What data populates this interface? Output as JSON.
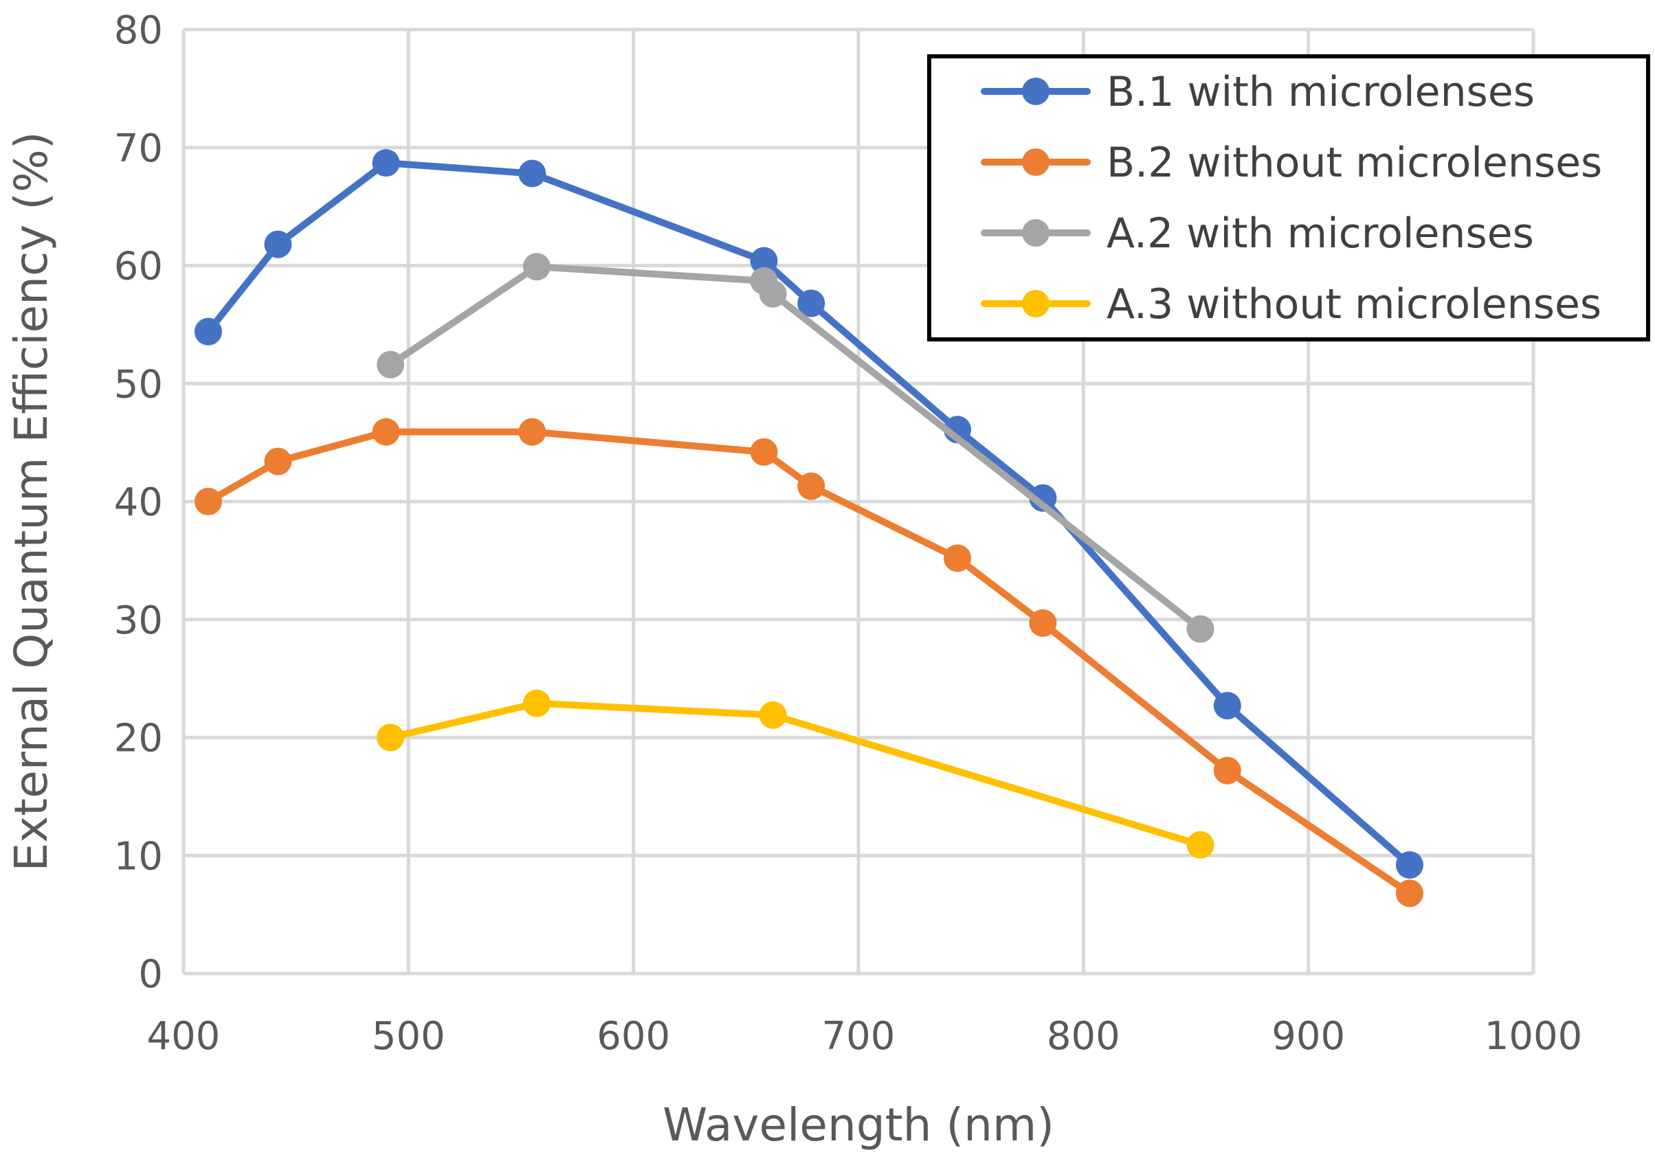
{
  "chart_data": {
    "type": "line",
    "title": "",
    "xlabel": "Wavelength (nm)",
    "ylabel": "External Quantum Efficiency (%)",
    "xlim": [
      400,
      1000
    ],
    "ylim": [
      0,
      80
    ],
    "xticks": [
      400,
      500,
      600,
      700,
      800,
      900,
      1000
    ],
    "yticks": [
      0,
      10,
      20,
      30,
      40,
      50,
      60,
      70,
      80
    ],
    "grid": true,
    "legend_position": "top-right",
    "series": [
      {
        "name": "B.1 with microlenses",
        "color": "#4472C4",
        "x": [
          411,
          442,
          490,
          555,
          658,
          679,
          744,
          782,
          864,
          945
        ],
        "y": [
          54.4,
          61.8,
          68.7,
          67.8,
          60.4,
          56.8,
          46.1,
          40.3,
          22.7,
          9.2
        ]
      },
      {
        "name": "B.2 without microlenses",
        "color": "#ED7D31",
        "x": [
          411,
          442,
          490,
          555,
          658,
          679,
          744,
          782,
          864,
          945
        ],
        "y": [
          40.0,
          43.4,
          45.9,
          45.9,
          44.2,
          41.3,
          35.2,
          29.7,
          17.2,
          6.8
        ]
      },
      {
        "name": "A.2 with microlenses",
        "color": "#A5A5A5",
        "x": [
          492,
          557,
          658,
          662,
          852
        ],
        "y": [
          51.6,
          59.9,
          58.7,
          57.6,
          29.2
        ]
      },
      {
        "name": "A.3 without microlenses",
        "color": "#FFC000",
        "x": [
          492,
          557,
          662,
          852
        ],
        "y": [
          20.0,
          22.9,
          21.9,
          10.9
        ]
      }
    ]
  }
}
